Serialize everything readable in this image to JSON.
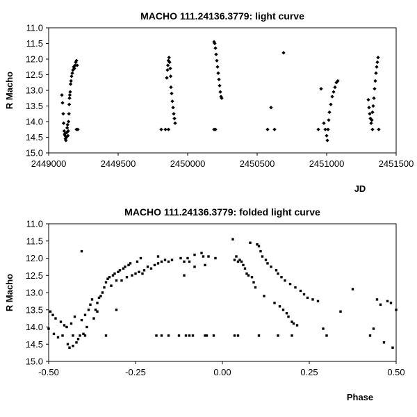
{
  "chart_data": [
    {
      "type": "scatter",
      "title": "MACHO 111.24136.3779: light curve",
      "xlabel": "JD",
      "ylabel": "R Macho",
      "xlim": [
        2449000,
        2451500
      ],
      "ylim": [
        11.0,
        15.0
      ],
      "y_inverted": true,
      "grid": false,
      "xticks": [
        "2449000",
        "2449500",
        "2450000",
        "2450500",
        "2451000",
        "2451500"
      ],
      "yticks": [
        "11.0",
        "11.5",
        "12.0",
        "12.5",
        "13.0",
        "13.5",
        "14.0",
        "14.5",
        "15.0"
      ],
      "marker_color": "#000000",
      "series": [
        {
          "points": [
            [
              2449095,
              13.15
            ],
            [
              2449100,
              13.4
            ],
            [
              2449105,
              13.75
            ],
            [
              2449108,
              14.05
            ],
            [
              2449112,
              14.3
            ],
            [
              2449115,
              14.4
            ],
            [
              2449118,
              14.45
            ],
            [
              2449121,
              14.55
            ],
            [
              2449124,
              14.6
            ],
            [
              2449127,
              14.5
            ],
            [
              2449130,
              14.35
            ],
            [
              2449133,
              14.2
            ],
            [
              2449136,
              14.1
            ],
            [
              2449139,
              14.45
            ],
            [
              2449141,
              14.3
            ],
            [
              2449143,
              14.0
            ],
            [
              2449146,
              13.75
            ],
            [
              2449148,
              13.45
            ],
            [
              2449150,
              13.25
            ],
            [
              2449152,
              13.15
            ],
            [
              2449155,
              13.05
            ],
            [
              2449158,
              12.8
            ],
            [
              2449161,
              12.7
            ],
            [
              2449165,
              12.55
            ],
            [
              2449170,
              12.45
            ],
            [
              2449175,
              12.35
            ],
            [
              2449180,
              12.25
            ],
            [
              2449185,
              12.3
            ],
            [
              2449190,
              12.2
            ],
            [
              2449195,
              12.1
            ],
            [
              2449200,
              12.05
            ],
            [
              2449205,
              12.2
            ],
            [
              2449200,
              14.25
            ],
            [
              2449210,
              14.25
            ],
            [
              2449810,
              14.25
            ],
            [
              2449840,
              14.25
            ],
            [
              2449850,
              12.6
            ],
            [
              2449855,
              12.35
            ],
            [
              2449858,
              12.2
            ],
            [
              2449862,
              12.05
            ],
            [
              2449866,
              11.95
            ],
            [
              2449870,
              12.1
            ],
            [
              2449875,
              12.3
            ],
            [
              2449878,
              12.55
            ],
            [
              2449862,
              14.25
            ],
            [
              2449880,
              12.9
            ],
            [
              2449885,
              13.1
            ],
            [
              2449890,
              13.35
            ],
            [
              2449895,
              13.55
            ],
            [
              2449900,
              13.75
            ],
            [
              2449905,
              13.9
            ],
            [
              2449910,
              14.05
            ],
            [
              2450190,
              11.45
            ],
            [
              2450195,
              11.5
            ],
            [
              2450200,
              11.65
            ],
            [
              2450205,
              11.85
            ],
            [
              2450210,
              12.05
            ],
            [
              2450215,
              12.25
            ],
            [
              2450220,
              12.45
            ],
            [
              2450225,
              12.65
            ],
            [
              2450230,
              12.85
            ],
            [
              2450235,
              13.05
            ],
            [
              2450240,
              13.2
            ],
            [
              2450245,
              13.25
            ],
            [
              2450190,
              14.25
            ],
            [
              2450200,
              14.25
            ],
            [
              2450575,
              14.25
            ],
            [
              2450600,
              13.55
            ],
            [
              2450625,
              14.25
            ],
            [
              2450690,
              11.8
            ],
            [
              2450940,
              14.25
            ],
            [
              2450960,
              12.95
            ],
            [
              2450980,
              14.05
            ],
            [
              2450990,
              14.25
            ],
            [
              2451000,
              14.45
            ],
            [
              2451005,
              14.6
            ],
            [
              2451010,
              14.25
            ],
            [
              2451015,
              13.95
            ],
            [
              2451020,
              13.7
            ],
            [
              2451030,
              13.45
            ],
            [
              2451040,
              13.2
            ],
            [
              2451050,
              13.05
            ],
            [
              2451060,
              12.9
            ],
            [
              2451070,
              12.75
            ],
            [
              2451080,
              12.7
            ],
            [
              2451300,
              13.3
            ],
            [
              2451305,
              13.55
            ],
            [
              2451310,
              13.75
            ],
            [
              2451315,
              13.9
            ],
            [
              2451320,
              14.05
            ],
            [
              2451325,
              13.95
            ],
            [
              2451330,
              13.7
            ],
            [
              2451335,
              13.5
            ],
            [
              2451340,
              13.25
            ],
            [
              2451345,
              12.95
            ],
            [
              2451350,
              12.7
            ],
            [
              2451355,
              12.45
            ],
            [
              2451360,
              12.25
            ],
            [
              2451365,
              12.1
            ],
            [
              2451370,
              11.95
            ],
            [
              2451330,
              14.25
            ],
            [
              2451375,
              14.25
            ]
          ]
        }
      ]
    },
    {
      "type": "scatter",
      "title": "MACHO 111.24136.3779: folded light curve",
      "xlabel": "Phase",
      "ylabel": "R Macho",
      "xlim": [
        -0.5,
        0.5
      ],
      "ylim": [
        11.0,
        15.0
      ],
      "y_inverted": true,
      "grid": false,
      "xticks": [
        "-0.50",
        "-0.25",
        "0.00",
        "0.25",
        "0.50"
      ],
      "yticks": [
        "11.0",
        "11.5",
        "12.0",
        "12.5",
        "13.0",
        "13.5",
        "14.0",
        "14.5",
        "15.0"
      ],
      "marker_color": "#000000",
      "series": [
        {
          "points": [
            [
              -0.5,
              14.05
            ],
            [
              -0.495,
              13.55
            ],
            [
              -0.488,
              13.65
            ],
            [
              -0.485,
              14.2
            ],
            [
              -0.48,
              13.75
            ],
            [
              -0.473,
              14.3
            ],
            [
              -0.465,
              13.85
            ],
            [
              -0.46,
              14.25
            ],
            [
              -0.455,
              13.95
            ],
            [
              -0.448,
              14.0
            ],
            [
              -0.445,
              14.5
            ],
            [
              -0.44,
              14.6
            ],
            [
              -0.435,
              13.9
            ],
            [
              -0.43,
              14.55
            ],
            [
              -0.425,
              13.7
            ],
            [
              -0.42,
              14.45
            ],
            [
              -0.415,
              14.35
            ],
            [
              -0.41,
              14.25
            ],
            [
              -0.405,
              13.8
            ],
            [
              -0.4,
              14.2
            ],
            [
              -0.395,
              13.65
            ],
            [
              -0.39,
              14.0
            ],
            [
              -0.385,
              13.5
            ],
            [
              -0.38,
              13.35
            ],
            [
              -0.375,
              13.2
            ],
            [
              -0.37,
              13.75
            ],
            [
              -0.365,
              13.5
            ],
            [
              -0.36,
              13.3
            ],
            [
              -0.355,
              13.15
            ],
            [
              -0.35,
              13.1
            ],
            [
              -0.345,
              13.0
            ],
            [
              -0.34,
              12.85
            ],
            [
              -0.335,
              12.7
            ],
            [
              -0.33,
              12.6
            ],
            [
              -0.325,
              12.55
            ],
            [
              -0.32,
              12.8
            ],
            [
              -0.315,
              12.5
            ],
            [
              -0.31,
              12.45
            ],
            [
              -0.305,
              12.65
            ],
            [
              -0.3,
              12.4
            ],
            [
              -0.295,
              12.35
            ],
            [
              -0.29,
              12.65
            ],
            [
              -0.285,
              12.3
            ],
            [
              -0.28,
              12.25
            ],
            [
              -0.275,
              12.55
            ],
            [
              -0.27,
              12.2
            ],
            [
              -0.265,
              12.15
            ],
            [
              -0.26,
              12.5
            ],
            [
              -0.25,
              12.45
            ],
            [
              -0.245,
              12.1
            ],
            [
              -0.24,
              12.4
            ],
            [
              -0.235,
              12.0
            ],
            [
              -0.23,
              12.45
            ],
            [
              -0.225,
              12.35
            ],
            [
              -0.215,
              12.25
            ],
            [
              -0.205,
              12.3
            ],
            [
              -0.195,
              12.2
            ],
            [
              -0.185,
              12.15
            ],
            [
              -0.175,
              12.1
            ],
            [
              -0.165,
              12.05
            ],
            [
              -0.155,
              12.1
            ],
            [
              -0.145,
              12.05
            ],
            [
              -0.12,
              12.0
            ],
            [
              -0.11,
              12.1
            ],
            [
              -0.1,
              12.0
            ],
            [
              -0.095,
              12.1
            ],
            [
              -0.08,
              11.9
            ],
            [
              -0.06,
              11.85
            ],
            [
              -0.055,
              11.95
            ],
            [
              -0.04,
              11.95
            ],
            [
              -0.02,
              12.0
            ],
            [
              -0.405,
              11.8
            ],
            [
              -0.36,
              13.55
            ],
            [
              -0.305,
              13.5
            ],
            [
              -0.185,
              11.95
            ],
            [
              -0.11,
              12.5
            ],
            [
              -0.08,
              12.25
            ],
            [
              -0.05,
              12.2
            ],
            [
              0.03,
              11.45
            ],
            [
              0.035,
              12.05
            ],
            [
              0.04,
              11.95
            ],
            [
              0.045,
              12.1
            ],
            [
              0.05,
              12.05
            ],
            [
              0.055,
              12.1
            ],
            [
              0.06,
              12.2
            ],
            [
              0.065,
              12.3
            ],
            [
              0.07,
              12.45
            ],
            [
              0.075,
              12.5
            ],
            [
              0.08,
              11.55
            ],
            [
              0.085,
              12.55
            ],
            [
              0.09,
              12.7
            ],
            [
              0.095,
              12.85
            ],
            [
              0.1,
              11.6
            ],
            [
              0.105,
              11.65
            ],
            [
              0.11,
              11.8
            ],
            [
              0.115,
              11.95
            ],
            [
              0.12,
              13.1
            ],
            [
              0.125,
              12.05
            ],
            [
              0.13,
              12.15
            ],
            [
              0.14,
              12.25
            ],
            [
              0.15,
              13.3
            ],
            [
              0.155,
              12.35
            ],
            [
              0.16,
              12.45
            ],
            [
              0.165,
              13.4
            ],
            [
              0.17,
              12.55
            ],
            [
              0.175,
              13.5
            ],
            [
              0.18,
              12.65
            ],
            [
              0.185,
              13.6
            ],
            [
              0.19,
              13.7
            ],
            [
              0.195,
              12.75
            ],
            [
              0.2,
              13.85
            ],
            [
              0.205,
              13.9
            ],
            [
              0.21,
              12.85
            ],
            [
              0.215,
              13.95
            ],
            [
              0.225,
              12.95
            ],
            [
              0.235,
              13.05
            ],
            [
              0.245,
              13.15
            ],
            [
              0.26,
              13.2
            ],
            [
              0.275,
              13.25
            ],
            [
              0.29,
              14.05
            ],
            [
              0.3,
              14.25
            ],
            [
              0.34,
              13.55
            ],
            [
              0.375,
              12.9
            ],
            [
              0.425,
              14.25
            ],
            [
              0.435,
              14.05
            ],
            [
              0.445,
              13.2
            ],
            [
              0.455,
              13.35
            ],
            [
              0.465,
              14.45
            ],
            [
              0.475,
              13.25
            ],
            [
              0.485,
              13.3
            ],
            [
              0.49,
              14.6
            ],
            [
              0.5,
              13.5
            ],
            [
              -0.43,
              14.25
            ],
            [
              -0.395,
              14.25
            ],
            [
              -0.335,
              14.25
            ],
            [
              -0.19,
              14.25
            ],
            [
              -0.175,
              14.25
            ],
            [
              -0.155,
              14.25
            ],
            [
              -0.125,
              14.25
            ],
            [
              -0.105,
              14.25
            ],
            [
              -0.095,
              14.25
            ],
            [
              -0.085,
              14.25
            ],
            [
              -0.05,
              14.25
            ],
            [
              -0.045,
              14.25
            ],
            [
              -0.025,
              14.25
            ],
            [
              0.035,
              14.25
            ],
            [
              0.045,
              14.25
            ],
            [
              0.105,
              14.25
            ],
            [
              0.16,
              14.25
            ],
            [
              0.2,
              14.25
            ]
          ]
        }
      ]
    }
  ]
}
